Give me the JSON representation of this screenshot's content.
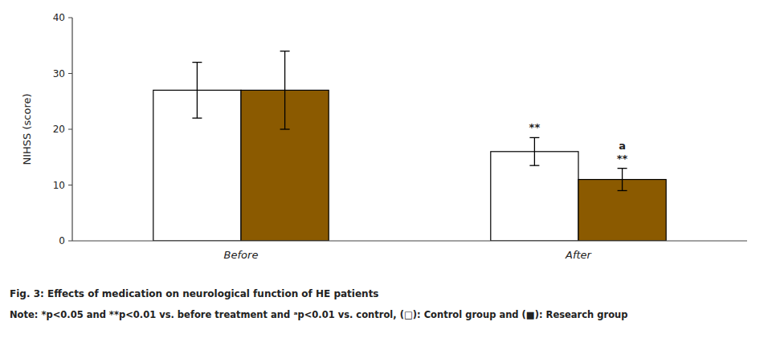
{
  "chart_data": {
    "type": "bar",
    "title": "Fig. 3: Effects of medication on neurological function of HE patients",
    "note": "Note: *p<0.05 and **p<0.01 vs. before treatment and ᵃp<0.01 vs. control, (□): Control group and (■): Research group",
    "categories": [
      "Before",
      "After"
    ],
    "series": [
      {
        "color": "#FFFFFF",
        "values": [
          27.0,
          16.0
        ],
        "errors": [
          5.0,
          2.5
        ]
      },
      {
        "color": "#8B5A00",
        "values": [
          27.0,
          11.0
        ],
        "errors": [
          7.0,
          2.0
        ]
      }
    ],
    "ylabel": "NIHSS (score)",
    "ylim": [
      0,
      40
    ],
    "yticks": [
      0,
      10,
      20,
      30,
      40
    ],
    "grid": false,
    "annotations": [
      {
        "text": "**",
        "category": 1,
        "series": 0
      },
      {
        "text": "**",
        "category": 1,
        "series": 1
      },
      {
        "text": "a",
        "category": 1,
        "series": 1
      }
    ]
  }
}
